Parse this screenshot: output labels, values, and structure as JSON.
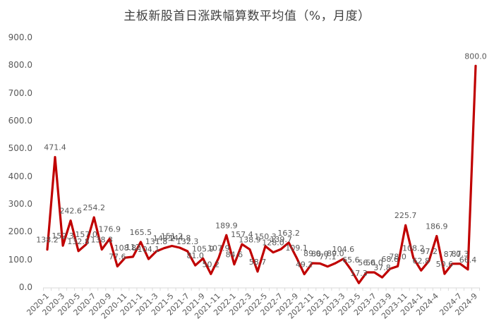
{
  "chart_data": {
    "type": "line",
    "title": "主板新股首日涨跌幅算数平均值（%，月度）",
    "xlabel": "",
    "ylabel": "",
    "ylim": [
      0,
      900
    ],
    "yticks": [
      "0.0",
      "100.0",
      "200.0",
      "300.0",
      "400.0",
      "500.0",
      "600.0",
      "700.0",
      "800.0",
      "900.0"
    ],
    "grid": false,
    "legend": null,
    "line_color": "#C00000",
    "x_tick_labels": [
      "2020-1",
      "2020-3",
      "2020-5",
      "2020-7",
      "2020-9",
      "2020-11",
      "2021-1",
      "2021-3",
      "2021-5",
      "2021-7",
      "2021-9",
      "2021-11",
      "2022-1",
      "2022-3",
      "2022-5",
      "2022-7",
      "2022-9",
      "2022-11",
      "2023-1",
      "2023-3",
      "2023-5",
      "2023-7",
      "2023-9",
      "2023-11",
      "2024-1",
      "2024-4",
      "2024-7",
      "2024-9"
    ],
    "series": [
      {
        "name": "主板新股首日涨跌幅算数平均值",
        "points": [
          {
            "x": "2020-1",
            "y": 138.2
          },
          {
            "x": "2020-2",
            "y": 471.4
          },
          {
            "x": "2020-3",
            "y": 152.3
          },
          {
            "x": "2020-4",
            "y": 242.6
          },
          {
            "x": "2020-5",
            "y": 132.8
          },
          {
            "x": "2020-6",
            "y": 157.0
          },
          {
            "x": "2020-7",
            "y": 254.2
          },
          {
            "x": "2020-8",
            "y": 138.3
          },
          {
            "x": "2020-9",
            "y": 176.9
          },
          {
            "x": "2020-10",
            "y": 77.6
          },
          {
            "x": "2020-11",
            "y": 108.8
          },
          {
            "x": "2020-12",
            "y": 112.0
          },
          {
            "x": "2021-1",
            "y": 165.5
          },
          {
            "x": "2021-2",
            "y": 104.1
          },
          {
            "x": "2021-3",
            "y": 131.8
          },
          {
            "x": "2021-4",
            "y": 143.2
          },
          {
            "x": "2021-5",
            "y": 151.2
          },
          {
            "x": "2021-6",
            "y": 144.8
          },
          {
            "x": "2021-7",
            "y": 132.3
          },
          {
            "x": "2021-8",
            "y": 81.0
          },
          {
            "x": "2021-9",
            "y": 105.9
          },
          {
            "x": "2021-10",
            "y": 50.2
          },
          {
            "x": "2021-11",
            "y": 107.9
          },
          {
            "x": "2021-12",
            "y": 189.9
          },
          {
            "x": "2022-1",
            "y": 84.6
          },
          {
            "x": "2022-2",
            "y": 157.4
          },
          {
            "x": "2022-3",
            "y": 138.9
          },
          {
            "x": "2022-4",
            "y": 58.7
          },
          {
            "x": "2022-5",
            "y": 150.3
          },
          {
            "x": "2022-6",
            "y": 128.0
          },
          {
            "x": "2022-7",
            "y": 139.7
          },
          {
            "x": "2022-8",
            "y": 163.2
          },
          {
            "x": "2022-9",
            "y": 109.1
          },
          {
            "x": "2022-10",
            "y": 49.2
          },
          {
            "x": "2022-11",
            "y": 89.0
          },
          {
            "x": "2022-12",
            "y": 88.0
          },
          {
            "x": "2023-1",
            "y": 77.1
          },
          {
            "x": "2023-2",
            "y": 89.0
          },
          {
            "x": "2023-3",
            "y": 104.6
          },
          {
            "x": "2023-4",
            "y": 65.6
          },
          {
            "x": "2023-5",
            "y": 17.3
          },
          {
            "x": "2023-6",
            "y": 56.0
          },
          {
            "x": "2023-7",
            "y": 56.0
          },
          {
            "x": "2023-8",
            "y": 37.8
          },
          {
            "x": "2023-9",
            "y": 68.6
          },
          {
            "x": "2023-10",
            "y": 78.0
          },
          {
            "x": "2023-11",
            "y": 225.7
          },
          {
            "x": "2023-12",
            "y": 108.2
          },
          {
            "x": "2024-1",
            "y": 62.8
          },
          {
            "x": "2024-3",
            "y": 97.2
          },
          {
            "x": "2024-4",
            "y": 186.9
          },
          {
            "x": "2024-5",
            "y": 50.6
          },
          {
            "x": "2024-6",
            "y": 87.0
          },
          {
            "x": "2024-7",
            "y": 87.3
          },
          {
            "x": "2024-8",
            "y": 66.4
          },
          {
            "x": "2024-9",
            "y": 800.0
          }
        ]
      }
    ],
    "data_labels": [
      "138.2",
      "471.4",
      "152.3",
      "242.6",
      "132.8",
      "157.0",
      "254.2",
      "138.3",
      "176.9",
      "77.6",
      "108.8",
      "112",
      "165.5",
      "104.1",
      "131.8",
      "143.2",
      "151.2",
      "144.8",
      "132.3",
      "81.0",
      "105.9",
      "50.2",
      "107.9",
      "189.9",
      "84.6",
      "157.4",
      "138.9",
      "58.7",
      "150.3",
      "128.0",
      "139.7",
      "163.2",
      "109.1",
      "49.2",
      "89.0",
      "88.0",
      "77.1",
      "89.0",
      "104.6",
      "65.6",
      "17.3",
      "56.0",
      "56.0",
      "37.8",
      "68.6",
      "78.0",
      "225.7",
      "108.2",
      "62.8",
      "97.2",
      "186.9",
      "50.6",
      "87.0",
      "87.3",
      "66.4",
      "800.0"
    ]
  }
}
